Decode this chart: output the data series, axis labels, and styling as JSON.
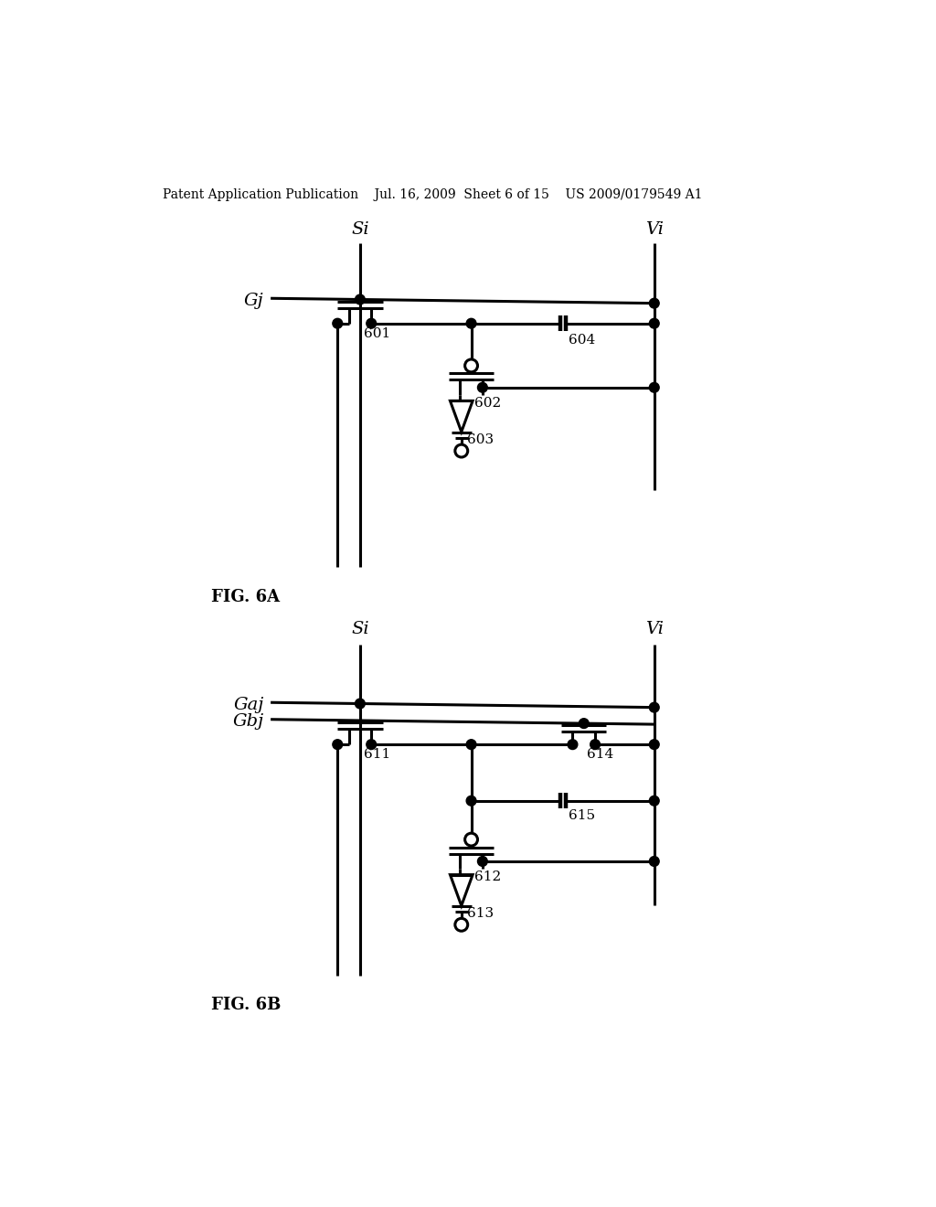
{
  "bg_color": "#ffffff",
  "line_color": "#000000",
  "header": "Patent Application Publication    Jul. 16, 2009  Sheet 6 of 15    US 2009/0179549 A1",
  "fig6a_label": "FIG. 6A",
  "fig6b_label": "FIG. 6B"
}
